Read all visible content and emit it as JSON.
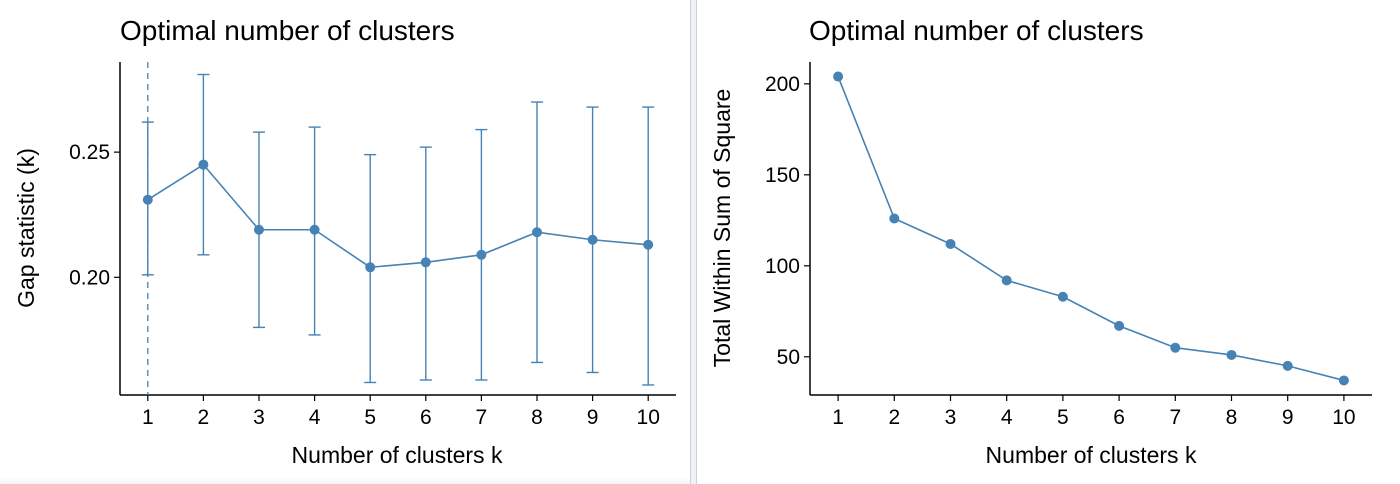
{
  "charts": [
    {
      "id": "gap",
      "chart_data": {
        "type": "line",
        "title": "Optimal number of clusters",
        "xlabel": "Number of clusters k",
        "ylabel": "Gap statistic (k)",
        "x": [
          1,
          2,
          3,
          4,
          5,
          6,
          7,
          8,
          9,
          10
        ],
        "series": [
          {
            "values": [
              0.231,
              0.245,
              0.219,
              0.219,
              0.204,
              0.206,
              0.209,
              0.218,
              0.215,
              0.213
            ],
            "error_low": [
              0.201,
              0.209,
              0.18,
              0.177,
              0.158,
              0.159,
              0.159,
              0.166,
              0.162,
              0.157
            ],
            "error_high": [
              0.262,
              0.281,
              0.258,
              0.26,
              0.249,
              0.252,
              0.259,
              0.27,
              0.268,
              0.268
            ]
          }
        ],
        "optimal_k": 1,
        "xticks": [
          "1",
          "2",
          "3",
          "4",
          "5",
          "6",
          "7",
          "8",
          "9",
          "10"
        ],
        "yticks": [
          0.2,
          0.25
        ],
        "ytick_labels": [
          "0.20",
          "0.25"
        ],
        "xlim": [
          0.5,
          10.5
        ],
        "ylim": [
          0.153,
          0.286
        ],
        "color": "#4682b4",
        "grid": false
      }
    },
    {
      "id": "wss",
      "chart_data": {
        "type": "line",
        "title": "Optimal number of clusters",
        "xlabel": "Number of clusters k",
        "ylabel": "Total Within Sum of Square",
        "x": [
          1,
          2,
          3,
          4,
          5,
          6,
          7,
          8,
          9,
          10
        ],
        "series": [
          {
            "values": [
              204,
              126,
              112,
              92,
              83,
              67,
              55,
              51,
              45,
              37
            ]
          }
        ],
        "xticks": [
          "1",
          "2",
          "3",
          "4",
          "5",
          "6",
          "7",
          "8",
          "9",
          "10"
        ],
        "yticks": [
          50,
          100,
          150,
          200
        ],
        "ytick_labels": [
          "50",
          "100",
          "150",
          "200"
        ],
        "xlim": [
          0.5,
          10.5
        ],
        "ylim": [
          29,
          212
        ],
        "color": "#4682b4",
        "grid": false
      }
    }
  ]
}
